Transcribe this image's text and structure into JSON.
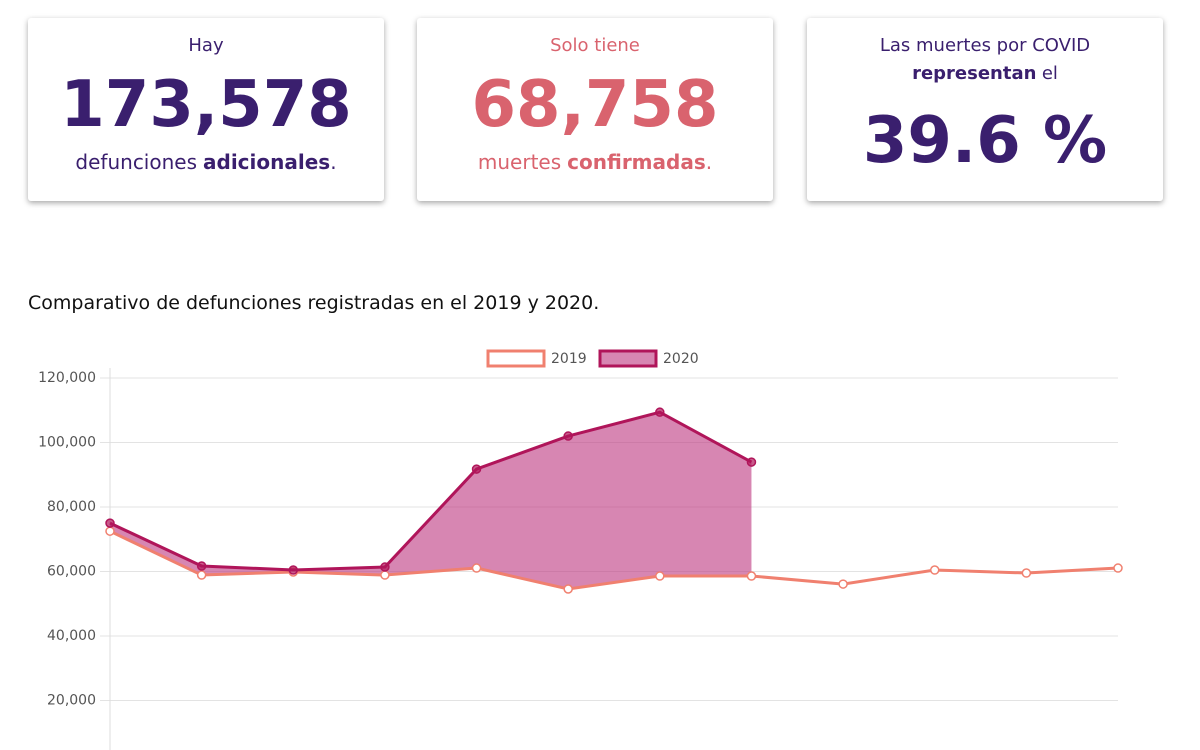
{
  "cards": [
    {
      "top": "Hay",
      "number": "173,578",
      "bottom": [
        "defunciones",
        "adicionales",
        "."
      ]
    },
    {
      "top": "Solo tiene",
      "number": "68,758",
      "bottom": [
        "muertes",
        "confirmadas",
        "."
      ]
    },
    {
      "top": [
        "Las muertes por COVID",
        "representan",
        "el"
      ],
      "number": "39.6 %"
    }
  ],
  "chart_data": {
    "type": "line",
    "title": "Comparativo de defunciones registradas en el 2019 y 2020.",
    "categories": [
      null,
      null,
      null,
      null,
      null,
      null,
      null,
      null,
      null,
      null,
      null,
      null
    ],
    "series": [
      {
        "name": "2019",
        "color": "#f0806f",
        "values": [
          72500,
          58900,
          59850,
          58900,
          61070,
          54570,
          58600,
          58600,
          56100,
          60460,
          59530,
          61070
        ]
      },
      {
        "name": "2020",
        "color": "#b0155a",
        "fill": "rgba(190,60,130,0.62)",
        "values": [
          75000,
          61700,
          60460,
          61380,
          91760,
          102000,
          109400,
          93930,
          null,
          null,
          null,
          null
        ]
      }
    ],
    "ylim": [
      0,
      120000
    ],
    "yticks": [
      {
        "value": 20000,
        "label": "20,000"
      },
      {
        "value": 40000,
        "label": "40,000"
      },
      {
        "value": 60000,
        "label": "60,000"
      },
      {
        "value": 80000,
        "label": "80,000"
      },
      {
        "value": 100000,
        "label": "100,000"
      },
      {
        "value": 120000,
        "label": "120,000"
      }
    ],
    "grid": true,
    "legend": "top"
  }
}
